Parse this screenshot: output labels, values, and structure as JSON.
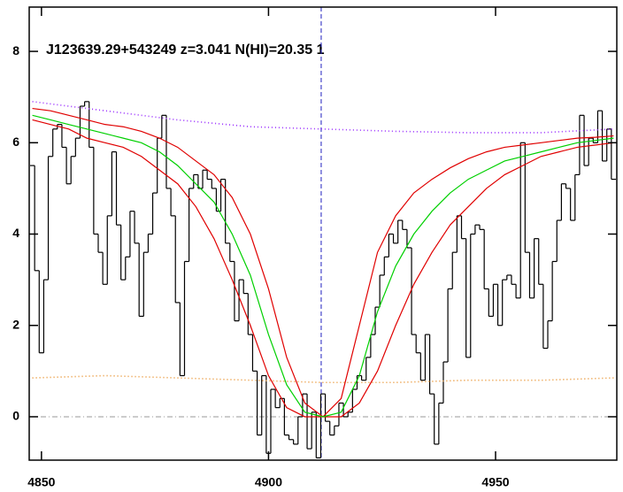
{
  "chart_data": {
    "type": "line",
    "title": "J123639.29+543249 z=3.041 N(HI)=20.35 1",
    "xlim": [
      4847.3,
      4976.7
    ],
    "ylim": [
      -0.95,
      8.97
    ],
    "xticks": [
      4850,
      4900,
      4950
    ],
    "yticks": [
      0,
      2,
      4,
      6,
      8
    ],
    "hline": 0,
    "vline": 4911.6,
    "series": [
      {
        "style": "step",
        "color": "#000000",
        "x": [
          4848,
          4849,
          4850,
          4851,
          4852,
          4853,
          4854,
          4855,
          4856,
          4857,
          4858,
          4859,
          4860,
          4861,
          4862,
          4863,
          4864,
          4865,
          4866,
          4867,
          4868,
          4869,
          4870,
          4871,
          4872,
          4873,
          4874,
          4875,
          4876,
          4877,
          4878,
          4879,
          4880,
          4881,
          4882,
          4883,
          4884,
          4885,
          4886,
          4887,
          4888,
          4889,
          4890,
          4891,
          4892,
          4893,
          4894,
          4895,
          4896,
          4897,
          4898,
          4899,
          4900,
          4901,
          4902,
          4903,
          4904,
          4905,
          4906,
          4907,
          4908,
          4909,
          4910,
          4911,
          4912,
          4913,
          4914,
          4915,
          4916,
          4917,
          4918,
          4919,
          4920,
          4921,
          4922,
          4923,
          4924,
          4925,
          4926,
          4927,
          4928,
          4929,
          4930,
          4931,
          4932,
          4933,
          4934,
          4935,
          4936,
          4937,
          4938,
          4939,
          4940,
          4941,
          4942,
          4943,
          4944,
          4945,
          4946,
          4947,
          4948,
          4949,
          4950,
          4951,
          4952,
          4953,
          4954,
          4955,
          4956,
          4957,
          4958,
          4959,
          4960,
          4961,
          4962,
          4963,
          4964,
          4965,
          4966,
          4967,
          4968,
          4969,
          4970,
          4971,
          4972,
          4973,
          4974,
          4975,
          4976
        ],
        "values": [
          5.5,
          3.2,
          1.4,
          3.0,
          5.7,
          6.3,
          6.4,
          5.9,
          5.1,
          5.7,
          6.1,
          6.8,
          6.9,
          5.9,
          4.0,
          3.6,
          2.9,
          4.4,
          5.8,
          4.2,
          3.0,
          3.5,
          4.5,
          3.8,
          2.2,
          3.6,
          4.0,
          4.9,
          6.1,
          6.6,
          5.0,
          4.4,
          2.5,
          0.9,
          3.4,
          5.0,
          5.3,
          5.0,
          5.4,
          5.2,
          5.0,
          4.5,
          5.2,
          3.8,
          3.4,
          2.1,
          3.0,
          2.7,
          1.8,
          1.0,
          -0.4,
          0.9,
          -0.8,
          0.6,
          0.2,
          0.4,
          -0.4,
          -0.5,
          -0.6,
          0.0,
          0.5,
          -0.7,
          0.1,
          -0.9,
          0.5,
          -0.1,
          -0.4,
          -0.2,
          0.3,
          0.0,
          0.1,
          0.6,
          0.9,
          0.8,
          1.3,
          1.8,
          2.4,
          3.1,
          3.5,
          4.0,
          3.8,
          4.3,
          4.1,
          3.7,
          1.8,
          1.4,
          0.8,
          1.8,
          0.5,
          -0.6,
          0.3,
          1.2,
          2.8,
          3.6,
          4.4,
          3.9,
          1.3,
          4.0,
          4.2,
          4.1,
          2.8,
          2.2,
          2.9,
          2.0,
          3.0,
          3.1,
          2.9,
          2.6,
          6.0,
          3.6,
          2.6,
          3.9,
          2.9,
          1.5,
          2.1,
          3.4,
          4.3,
          5.1,
          5.0,
          4.3,
          5.3,
          6.6,
          5.5,
          6.1,
          6.0,
          6.7,
          5.6,
          6.3,
          5.2
        ]
      },
      {
        "style": "solid",
        "color": "#e00000",
        "x": [
          4848,
          4852,
          4856,
          4860,
          4864,
          4868,
          4872,
          4876,
          4880,
          4884,
          4888,
          4892,
          4896,
          4900,
          4904,
          4908,
          4912,
          4916,
          4920,
          4924,
          4928,
          4932,
          4936,
          4940,
          4944,
          4948,
          4952,
          4956,
          4960,
          4964,
          4968,
          4972,
          4976
        ],
        "values": [
          6.75,
          6.7,
          6.6,
          6.5,
          6.4,
          6.35,
          6.25,
          6.1,
          5.9,
          5.6,
          5.3,
          4.8,
          4.0,
          2.8,
          1.3,
          0.3,
          0.0,
          0.4,
          2.0,
          3.6,
          4.4,
          4.9,
          5.2,
          5.45,
          5.65,
          5.8,
          5.9,
          5.95,
          6.0,
          6.05,
          6.1,
          6.12,
          6.15
        ]
      },
      {
        "style": "solid",
        "color": "#e00000",
        "x": [
          4848,
          4852,
          4856,
          4860,
          4864,
          4868,
          4872,
          4876,
          4880,
          4884,
          4888,
          4892,
          4896,
          4900,
          4904,
          4908,
          4912,
          4916,
          4920,
          4924,
          4928,
          4932,
          4936,
          4940,
          4944,
          4948,
          4952,
          4956,
          4960,
          4964,
          4968,
          4972,
          4976
        ],
        "values": [
          6.5,
          6.4,
          6.3,
          6.1,
          6.0,
          5.9,
          5.7,
          5.4,
          5.1,
          4.6,
          3.9,
          3.0,
          2.0,
          0.9,
          0.2,
          0.0,
          0.0,
          0.0,
          0.3,
          1.0,
          2.0,
          2.9,
          3.6,
          4.2,
          4.6,
          5.0,
          5.3,
          5.5,
          5.7,
          5.8,
          5.9,
          5.95,
          6.0
        ]
      },
      {
        "style": "solid",
        "color": "#00d000",
        "x": [
          4848,
          4852,
          4856,
          4860,
          4864,
          4868,
          4872,
          4876,
          4880,
          4884,
          4888,
          4892,
          4896,
          4900,
          4904,
          4908,
          4912,
          4916,
          4920,
          4924,
          4928,
          4932,
          4936,
          4940,
          4944,
          4948,
          4952,
          4956,
          4960,
          4964,
          4968,
          4972,
          4976
        ],
        "values": [
          6.6,
          6.5,
          6.4,
          6.3,
          6.2,
          6.1,
          6.0,
          5.8,
          5.5,
          5.1,
          4.7,
          4.0,
          3.1,
          1.8,
          0.7,
          0.1,
          0.0,
          0.1,
          0.9,
          2.3,
          3.3,
          4.0,
          4.5,
          4.9,
          5.2,
          5.4,
          5.6,
          5.7,
          5.8,
          5.9,
          6.0,
          6.05,
          6.1
        ]
      },
      {
        "style": "dotted",
        "color": "#9b30ff",
        "x": [
          4848,
          4864,
          4880,
          4896,
          4912,
          4928,
          4944,
          4960,
          4976
        ],
        "values": [
          6.9,
          6.7,
          6.5,
          6.35,
          6.3,
          6.25,
          6.22,
          6.22,
          6.3
        ]
      },
      {
        "style": "dotted",
        "color": "#e8902a",
        "x": [
          4848,
          4864,
          4880,
          4896,
          4912,
          4928,
          4944,
          4960,
          4976
        ],
        "values": [
          0.85,
          0.9,
          0.85,
          0.8,
          0.75,
          0.75,
          0.8,
          0.8,
          0.85
        ]
      }
    ]
  }
}
